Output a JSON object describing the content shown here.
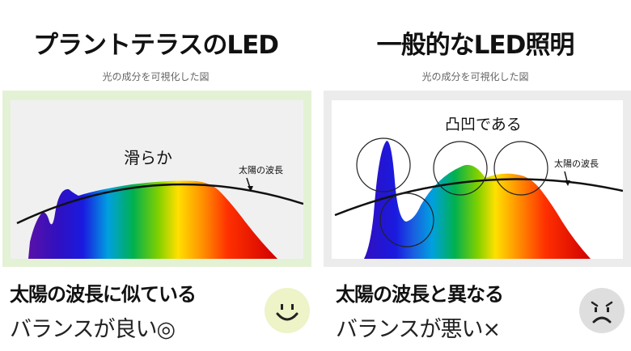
{
  "left": {
    "title": "プラントテラスのLED",
    "subtitle": "光の成分を可視化した図",
    "annotation_smooth": "滑らか",
    "sun_label": "太陽の波長",
    "caption_bold": "太陽の波長に似ている",
    "caption_normal": "バランスが良い◎",
    "face_icon": "smiley-face-icon",
    "frame_color": "#e3f2d4"
  },
  "right": {
    "title": "一般的なLED照明",
    "subtitle": "光の成分を可視化した図",
    "annotation_bumpy": "凸凹である",
    "sun_label": "太陽の波長",
    "caption_bold": "太陽の波長と異なる",
    "caption_normal": "バランスが悪い×",
    "face_icon": "frowning-face-icon",
    "frame_color": "#ececec"
  },
  "spectrum_colors": [
    "#5a10a8",
    "#1a1ae0",
    "#00a0e0",
    "#00b050",
    "#7ed000",
    "#ffe000",
    "#ff9000",
    "#ff3000",
    "#d00000"
  ]
}
